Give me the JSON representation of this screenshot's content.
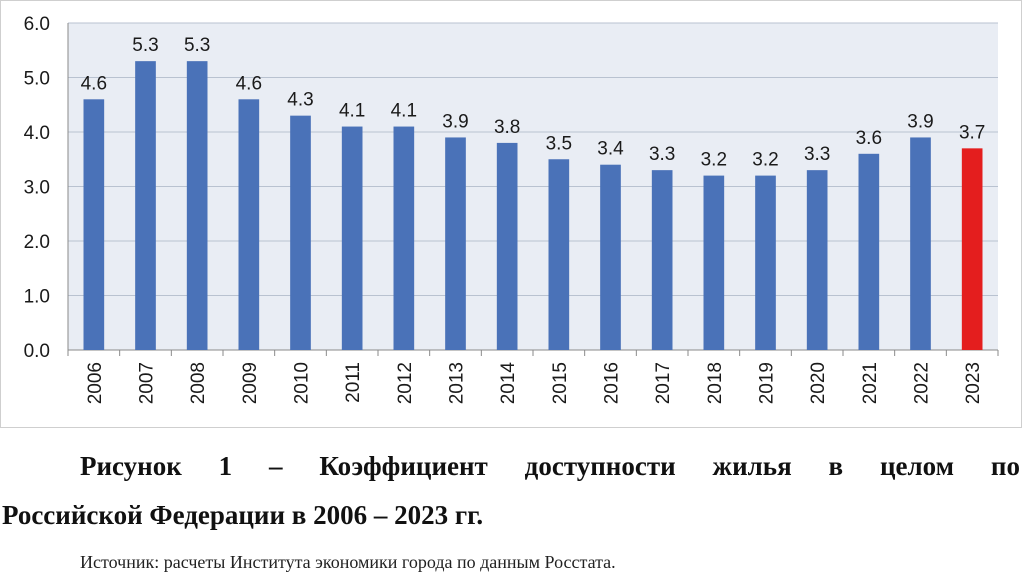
{
  "chart_data": {
    "type": "bar",
    "categories": [
      "2006",
      "2007",
      "2008",
      "2009",
      "2010",
      "2011",
      "2012",
      "2013",
      "2014",
      "2015",
      "2016",
      "2017",
      "2018",
      "2019",
      "2020",
      "2021",
      "2022",
      "2023"
    ],
    "values": [
      4.6,
      5.3,
      5.3,
      4.6,
      4.3,
      4.1,
      4.1,
      3.9,
      3.8,
      3.5,
      3.4,
      3.3,
      3.2,
      3.2,
      3.3,
      3.6,
      3.9,
      3.7
    ],
    "data_labels": [
      "4.6",
      "5.3",
      "5.3",
      "4.6",
      "4.3",
      "4.1",
      "4.1",
      "3.9",
      "3.8",
      "3.5",
      "3.4",
      "3.3",
      "3.2",
      "3.2",
      "3.3",
      "3.6",
      "3.9",
      "3.7"
    ],
    "y_ticks": [
      "0.0",
      "1.0",
      "2.0",
      "3.0",
      "4.0",
      "5.0",
      "6.0"
    ],
    "ylim": [
      0,
      6
    ],
    "grid": true,
    "legend": "none",
    "colors": {
      "bar": "#4a72b8",
      "highlight_bar": "#e41e1e",
      "plot_background": "#e9edf4",
      "gridline": "#b9c2d0"
    },
    "highlight_category": "2023"
  },
  "caption": {
    "line1": "Рисунок 1 – Коэффициент доступности жилья в целом по",
    "line2": "Российской Федерации в 2006 – 2023 гг."
  },
  "source": "Источник: расчеты Института экономики города по данным Росстата."
}
